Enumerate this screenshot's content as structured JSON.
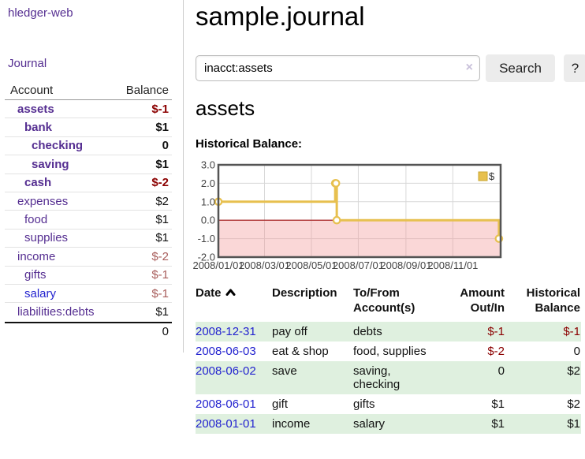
{
  "app": {
    "brand": "hledger-web",
    "nav": {
      "journal": "Journal"
    }
  },
  "sidebar": {
    "header": {
      "account": "Account",
      "balance": "Balance"
    },
    "accounts": [
      {
        "name": "assets",
        "depth": 0,
        "balance": "$-1",
        "bold": true,
        "link_color": "purple"
      },
      {
        "name": "bank",
        "depth": 1,
        "balance": "$1",
        "bold": true,
        "link_color": "purple"
      },
      {
        "name": "checking",
        "depth": 2,
        "balance": "0",
        "bold": true,
        "link_color": "purple"
      },
      {
        "name": "saving",
        "depth": 2,
        "balance": "$1",
        "bold": true,
        "link_color": "purple"
      },
      {
        "name": "cash",
        "depth": 1,
        "balance": "$-2",
        "bold": true,
        "link_color": "purple"
      },
      {
        "name": "expenses",
        "depth": 0,
        "balance": "$2",
        "bold": false,
        "link_color": "purple"
      },
      {
        "name": "food",
        "depth": 1,
        "balance": "$1",
        "bold": false,
        "link_color": "purple"
      },
      {
        "name": "supplies",
        "depth": 1,
        "balance": "$1",
        "bold": false,
        "link_color": "purple"
      },
      {
        "name": "income",
        "depth": 0,
        "balance": "$-2",
        "bold": false,
        "link_color": "purple"
      },
      {
        "name": "gifts",
        "depth": 1,
        "balance": "$-1",
        "bold": false,
        "link_color": "purple"
      },
      {
        "name": "salary",
        "depth": 1,
        "balance": "$-1",
        "bold": false,
        "link_color": "blue"
      },
      {
        "name": "liabilities:debts",
        "depth": 0,
        "balance": "$1",
        "bold": false,
        "link_color": "purple"
      }
    ],
    "total": "0"
  },
  "main": {
    "title": "sample.journal",
    "search": {
      "value": "inacct:assets",
      "clear_glyph": "×",
      "button_label": "Search",
      "help_label": "?"
    },
    "account_heading": "assets",
    "chart_title": "Historical Balance:"
  },
  "chart_data": {
    "type": "line",
    "style": "step",
    "title": "Historical Balance:",
    "legend": [
      {
        "label": "$",
        "color": "#e7c04f"
      }
    ],
    "legend_position": "top-right",
    "grid": true,
    "ylim": [
      -2.0,
      3.0
    ],
    "yticks": [
      "3.0",
      "2.0",
      "1.0",
      "0.0",
      "-1.0",
      "-2.0"
    ],
    "ytick_values": [
      3,
      2,
      1,
      0,
      -1,
      -2
    ],
    "xticks": [
      "2008/01/01",
      "2008/03/01",
      "2008/05/01",
      "2008/07/01",
      "2008/09/01",
      "2008/11/01"
    ],
    "series": [
      {
        "name": "$",
        "points": [
          {
            "x": "2008-01-01",
            "y": 1
          },
          {
            "x": "2008-06-01",
            "y": 2
          },
          {
            "x": "2008-06-02",
            "y": 2
          },
          {
            "x": "2008-06-03",
            "y": 0
          },
          {
            "x": "2008-12-31",
            "y": -1
          }
        ]
      }
    ],
    "negative_region_shaded": true,
    "zero_line_color": "#a01010"
  },
  "register": {
    "columns": {
      "date": "Date",
      "description": "Description",
      "tofrom": "To/From\nAccount(s)",
      "amount": "Amount\nOut/In",
      "balance": "Historical\nBalance"
    },
    "sort": {
      "column": "date",
      "direction": "ascending"
    },
    "rows": [
      {
        "date": "2008-12-31",
        "description": "pay off",
        "accounts": "debts",
        "amount": "$-1",
        "balance": "$-1"
      },
      {
        "date": "2008-06-03",
        "description": "eat & shop",
        "accounts": "food, supplies",
        "amount": "$-2",
        "balance": "0"
      },
      {
        "date": "2008-06-02",
        "description": "save",
        "accounts": "saving, checking",
        "amount": "0",
        "balance": "$2"
      },
      {
        "date": "2008-06-01",
        "description": "gift",
        "accounts": "gifts",
        "amount": "$1",
        "balance": "$2"
      },
      {
        "date": "2008-01-01",
        "description": "income",
        "accounts": "salary",
        "amount": "$1",
        "balance": "$1"
      }
    ]
  },
  "colors": {
    "link_purple": "#552e91",
    "link_blue": "#2323cf",
    "negative_strong": "#8b0000",
    "negative_soft": "#a85d5b",
    "row_green": "#dff0df",
    "series_gold": "#e7c04f",
    "negative_area_pink": "#f9dada"
  }
}
